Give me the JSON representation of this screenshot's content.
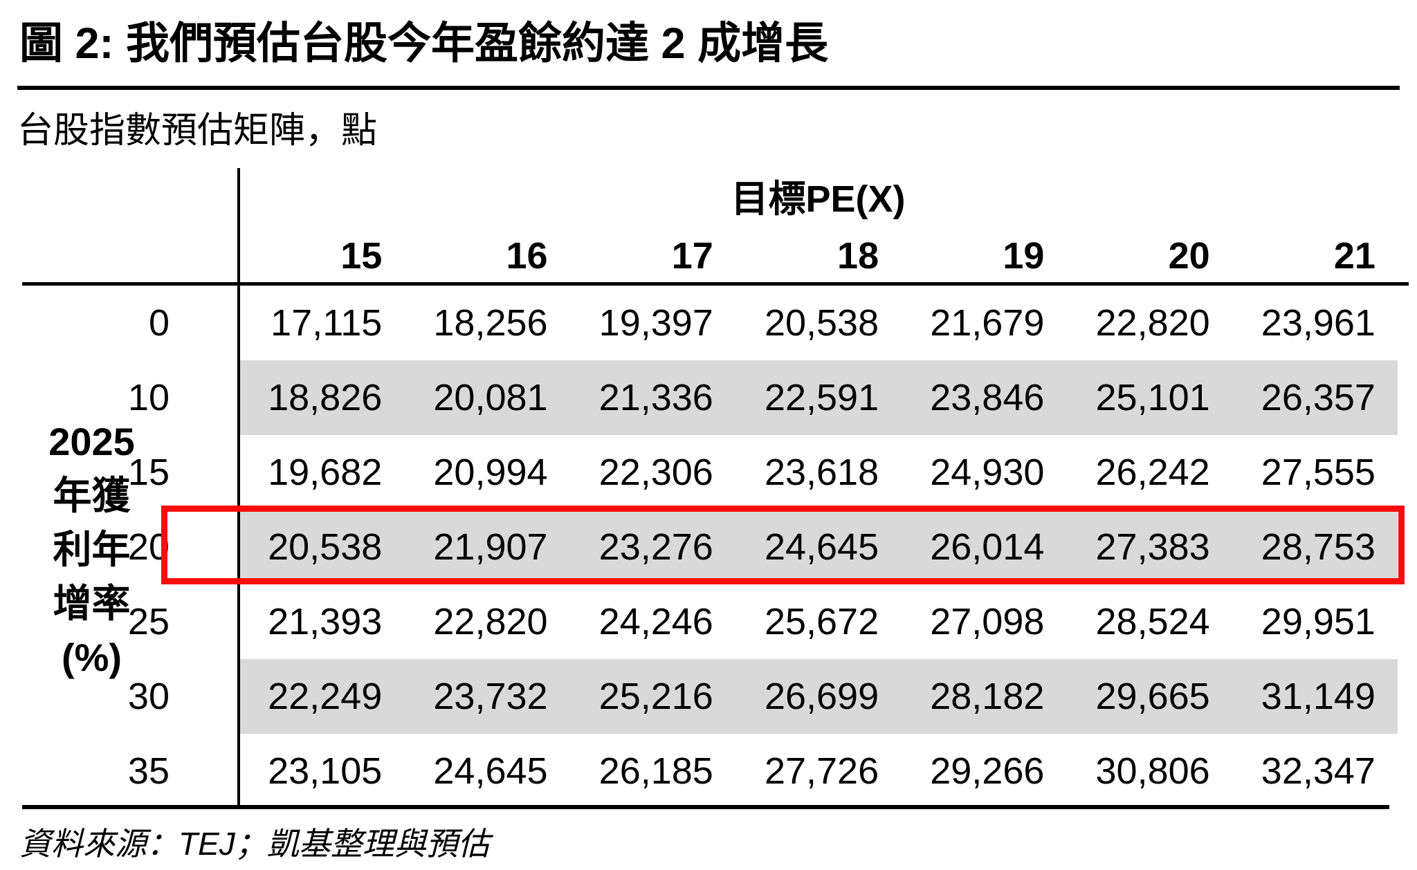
{
  "figure": {
    "title": "圖 2: 我們預估台股今年盈餘約達 2 成增長",
    "subtitle": "台股指數預估矩陣，點",
    "source": "資料來源：TEJ；凱基整理與預估"
  },
  "colors": {
    "highlight_red": "#f80d0d",
    "shade_gray": "#d9d9d9",
    "text": "#000000",
    "background": "#ffffff"
  },
  "chart_data": {
    "type": "table",
    "title": "圖 2: 我們預估台股今年盈餘約達 2 成增長",
    "subtitle": "台股指數預估矩陣，點",
    "units": "點",
    "column_axis_label": "目標PE(X)",
    "row_axis_label": "2025年獲利年增率(%)",
    "row_axis_label_lines": [
      "2025",
      "年獲",
      "利年",
      "增率",
      "(%)"
    ],
    "columns": [
      "15",
      "16",
      "17",
      "18",
      "19",
      "20",
      "21"
    ],
    "row_headers": [
      "0",
      "10",
      "15",
      "20",
      "25",
      "30",
      "35"
    ],
    "rows": [
      {
        "header": "0",
        "shaded": false,
        "highlighted": false,
        "values": [
          "17,115",
          "18,256",
          "19,397",
          "20,538",
          "21,679",
          "22,820",
          "23,961"
        ]
      },
      {
        "header": "10",
        "shaded": true,
        "highlighted": false,
        "values": [
          "18,826",
          "20,081",
          "21,336",
          "22,591",
          "23,846",
          "25,101",
          "26,357"
        ]
      },
      {
        "header": "15",
        "shaded": false,
        "highlighted": false,
        "values": [
          "19,682",
          "20,994",
          "22,306",
          "23,618",
          "24,930",
          "26,242",
          "27,555"
        ]
      },
      {
        "header": "20",
        "shaded": true,
        "highlighted": true,
        "values": [
          "20,538",
          "21,907",
          "23,276",
          "24,645",
          "26,014",
          "27,383",
          "28,753"
        ]
      },
      {
        "header": "25",
        "shaded": false,
        "highlighted": false,
        "values": [
          "21,393",
          "22,820",
          "24,246",
          "25,672",
          "27,098",
          "28,524",
          "29,951"
        ]
      },
      {
        "header": "30",
        "shaded": true,
        "highlighted": false,
        "values": [
          "22,249",
          "23,732",
          "25,216",
          "26,699",
          "28,182",
          "29,665",
          "31,149"
        ]
      },
      {
        "header": "35",
        "shaded": false,
        "highlighted": false,
        "values": [
          "23,105",
          "24,645",
          "26,185",
          "27,726",
          "29,266",
          "30,806",
          "32,347"
        ]
      }
    ],
    "highlighted_row": "20",
    "layout": {
      "shaded_rows": [
        "10",
        "20",
        "30"
      ],
      "legend": "none",
      "grid": "minimal",
      "highlight": "red-box-around-row-20"
    },
    "source": "資料來源：TEJ；凱基整理與預估"
  }
}
